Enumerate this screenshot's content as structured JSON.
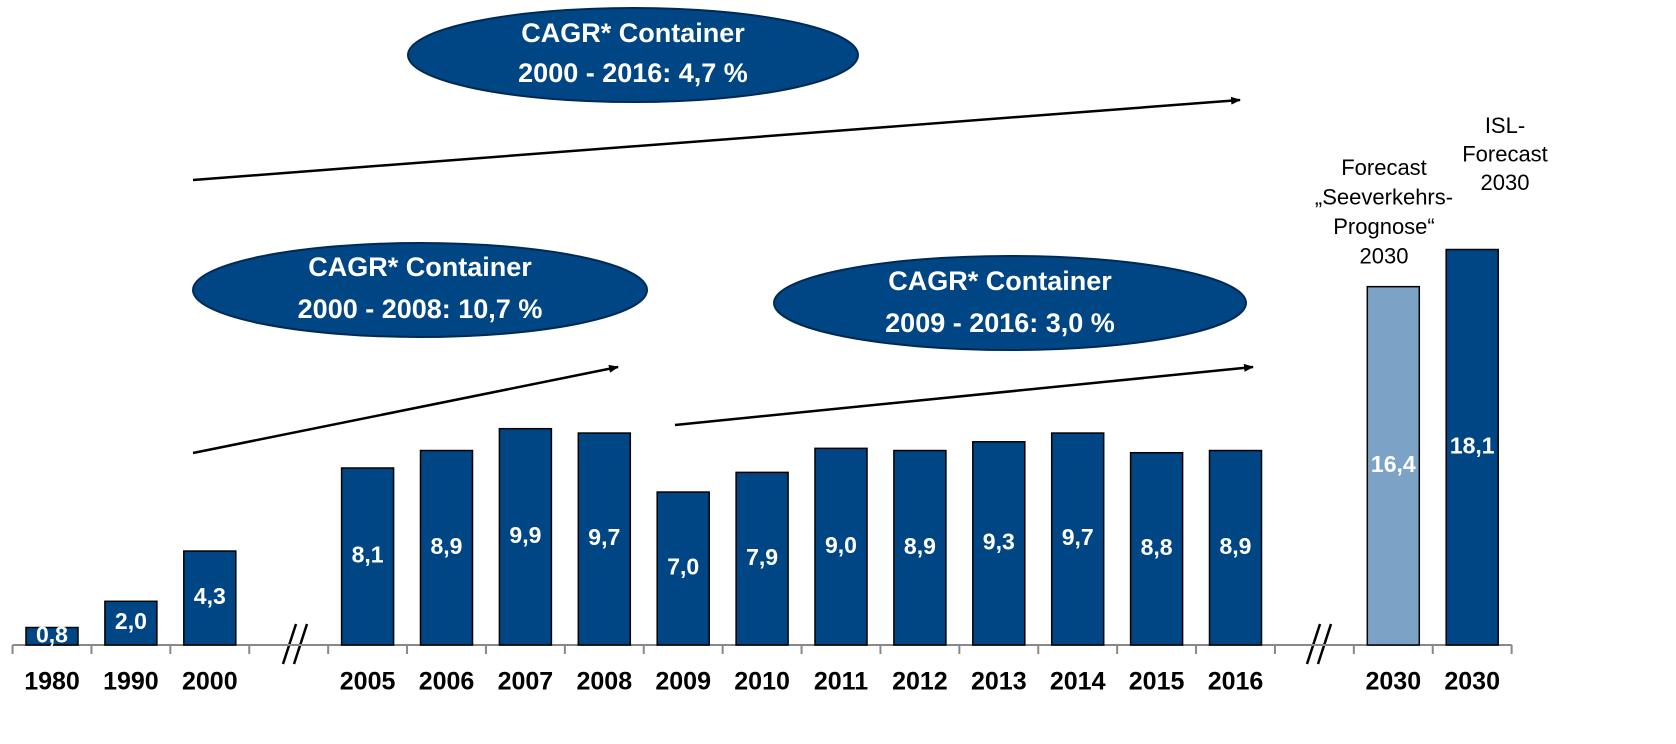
{
  "chart_data": {
    "type": "bar",
    "categories": [
      "1980",
      "1990",
      "2000",
      null,
      "2005",
      "2006",
      "2007",
      "2008",
      "2009",
      "2010",
      "2011",
      "2012",
      "2013",
      "2014",
      "2015",
      "2016",
      null,
      "2030",
      "2030"
    ],
    "values": [
      0.8,
      2.0,
      4.3,
      null,
      8.1,
      8.9,
      9.9,
      9.7,
      7.0,
      7.9,
      9.0,
      8.9,
      9.3,
      9.7,
      8.8,
      8.9,
      null,
      16.4,
      18.1
    ],
    "value_labels": [
      "0,8",
      "2,0",
      "4,3",
      null,
      "8,1",
      "8,9",
      "9,9",
      "9,7",
      "7,0",
      "7,9",
      "9,0",
      "8,9",
      "9,3",
      "9,7",
      "8,8",
      "8,9",
      null,
      "16,4",
      "18,1"
    ],
    "colors": [
      "#004685",
      "#004685",
      "#004685",
      null,
      "#004685",
      "#004685",
      "#004685",
      "#004685",
      "#004685",
      "#004685",
      "#004685",
      "#004685",
      "#004685",
      "#004685",
      "#004685",
      "#004685",
      null,
      "#7ca3c5",
      "#004685"
    ],
    "ylim": [
      0,
      20
    ],
    "annotations": [
      {
        "lines": [
          "CAGR* Container",
          "2000 - 2016: 4,7 %"
        ]
      },
      {
        "lines": [
          "CAGR* Container",
          "2000 - 2008: 10,7 %"
        ]
      },
      {
        "lines": [
          "CAGR* Container",
          "2009 - 2016: 3,0 %"
        ]
      },
      {
        "lines": [
          "Forecast",
          "„Seeverkehrs-",
          "Prognose“",
          "2030"
        ]
      },
      {
        "lines": [
          "ISL-",
          "Forecast",
          "2030"
        ]
      }
    ]
  }
}
